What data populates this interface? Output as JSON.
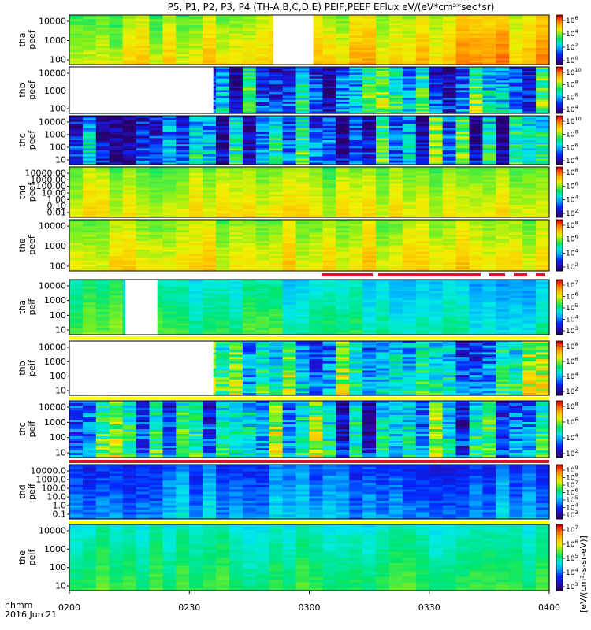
{
  "chart_data": {
    "type": "heatmap",
    "title": "P5, P1, P2, P3, P4 (TH-A,B,C,D,E) PEIF,PEEF EFlux eV/(eV*cm²*sec*sr)",
    "colorbar_title": "[eV/(cm²-s-sr-eV)]",
    "x_label_lines": [
      "hhmm",
      "2016 Jun 21"
    ],
    "x_ticks": [
      "0200",
      "0230",
      "0300",
      "0330",
      "0400"
    ],
    "x_range_minutes": [
      0,
      120
    ],
    "gaps": [
      {
        "panel": "tha_peef",
        "start_min": 51,
        "end_min": 61
      },
      {
        "panel": "thb_peef",
        "start_min": 0,
        "end_min": 36
      },
      {
        "panel": "tha_peif",
        "start_min": 14,
        "end_min": 22
      },
      {
        "panel": "thb_peif",
        "start_min": 0,
        "end_min": 36
      }
    ],
    "panels": [
      {
        "id": "tha_peef",
        "label1": "tha",
        "label2": "peef",
        "y_ticks": [
          "10000",
          "1000",
          "100"
        ],
        "cb_ticks": [
          [
            "10",
            "6"
          ],
          [
            "10",
            "4"
          ],
          [
            "10",
            "2"
          ],
          [
            "10",
            "0"
          ]
        ],
        "seed": 11,
        "base": 0.72,
        "spread": 0.08,
        "trend": 0.06,
        "bar": "none"
      },
      {
        "id": "thb_peef",
        "label1": "thb",
        "label2": "peef",
        "y_ticks": [
          "10000",
          "1000",
          "100"
        ],
        "cb_ticks": [
          [
            "10",
            "10"
          ],
          [
            "10",
            "8"
          ],
          [
            "10",
            "6"
          ],
          [
            "10",
            "4"
          ]
        ],
        "seed": 23,
        "base": 0.35,
        "spread": 0.3,
        "trend": 0,
        "bar": "none"
      },
      {
        "id": "thc_peef",
        "label1": "thc",
        "label2": "peef",
        "y_ticks": [
          "10000",
          "1000",
          "100",
          "10"
        ],
        "cb_ticks": [
          [
            "10",
            "10"
          ],
          [
            "10",
            "8"
          ],
          [
            "10",
            "6"
          ],
          [
            "10",
            "4"
          ]
        ],
        "seed": 37,
        "base": 0.3,
        "spread": 0.3,
        "trend": 0,
        "bar": "none"
      },
      {
        "id": "thd_peef",
        "label1": "thd",
        "label2": "peef",
        "y_ticks": [
          "10000.00",
          "1000.00",
          "100.00",
          "10.00",
          "1.00",
          "0.10",
          "0.01"
        ],
        "cb_ticks": [
          [
            "10",
            "8"
          ],
          [
            "10",
            "6"
          ],
          [
            "10",
            "4"
          ],
          [
            "10",
            "2"
          ]
        ],
        "seed": 41,
        "base": 0.66,
        "spread": 0.06,
        "trend": 0,
        "bar": "none"
      },
      {
        "id": "the_peef",
        "label1": "the",
        "label2": "peef",
        "y_ticks": [
          "10000",
          "1000",
          "100"
        ],
        "cb_ticks": [
          [
            "10",
            "8"
          ],
          [
            "10",
            "6"
          ],
          [
            "10",
            "4"
          ],
          [
            "10",
            "2"
          ]
        ],
        "seed": 53,
        "base": 0.7,
        "spread": 0.07,
        "trend": 0,
        "bar": "dashed"
      },
      {
        "id": "tha_peif",
        "label1": "tha",
        "label2": "peif",
        "y_ticks": [
          "10000",
          "1000",
          "100",
          "10"
        ],
        "cb_ticks": [
          [
            "10",
            "7"
          ],
          [
            "10",
            "6"
          ],
          [
            "10",
            "5"
          ],
          [
            "10",
            "4"
          ],
          [
            "10",
            "3"
          ]
        ],
        "seed": 61,
        "base": 0.46,
        "spread": 0.07,
        "trend": -0.08,
        "bar": "yellow"
      },
      {
        "id": "thb_peif",
        "label1": "thb",
        "label2": "peif",
        "y_ticks": [
          "10000",
          "1000",
          "100",
          "10"
        ],
        "cb_ticks": [
          [
            "10",
            "8"
          ],
          [
            "10",
            "6"
          ],
          [
            "10",
            "4"
          ],
          [
            "10",
            "2"
          ]
        ],
        "seed": 73,
        "base": 0.38,
        "spread": 0.28,
        "trend": 0,
        "bar": "yellow"
      },
      {
        "id": "thc_peif",
        "label1": "thc",
        "label2": "peif",
        "y_ticks": [
          "10000",
          "1000",
          "100",
          "10"
        ],
        "cb_ticks": [
          [
            "10",
            "8"
          ],
          [
            "10",
            "6"
          ],
          [
            "10",
            "4"
          ],
          [
            "10",
            "2"
          ]
        ],
        "seed": 89,
        "base": 0.38,
        "spread": 0.28,
        "trend": 0,
        "bar": "red"
      },
      {
        "id": "thd_peif",
        "label1": "thd",
        "label2": "peif",
        "y_ticks": [
          "10000.0",
          "1000.0",
          "100.0",
          "10.0",
          "1.0",
          "0.1"
        ],
        "cb_ticks": [
          [
            "10",
            "9"
          ],
          [
            "10",
            "8"
          ],
          [
            "10",
            "7"
          ],
          [
            "10",
            "6"
          ],
          [
            "10",
            "5"
          ],
          [
            "10",
            "4"
          ],
          [
            "10",
            "3"
          ]
        ],
        "seed": 97,
        "base": 0.3,
        "spread": 0.1,
        "trend": 0,
        "bar": "yellow"
      },
      {
        "id": "the_peif",
        "label1": "the",
        "label2": "peif",
        "y_ticks": [
          "10000",
          "1000",
          "100",
          "10"
        ],
        "cb_ticks": [
          [
            "10",
            "7"
          ],
          [
            "10",
            "6"
          ],
          [
            "10",
            "5"
          ],
          [
            "10",
            "4"
          ],
          [
            "10",
            "3"
          ]
        ],
        "seed": 101,
        "base": 0.5,
        "spread": 0.05,
        "trend": 0,
        "bar": "none"
      }
    ]
  }
}
